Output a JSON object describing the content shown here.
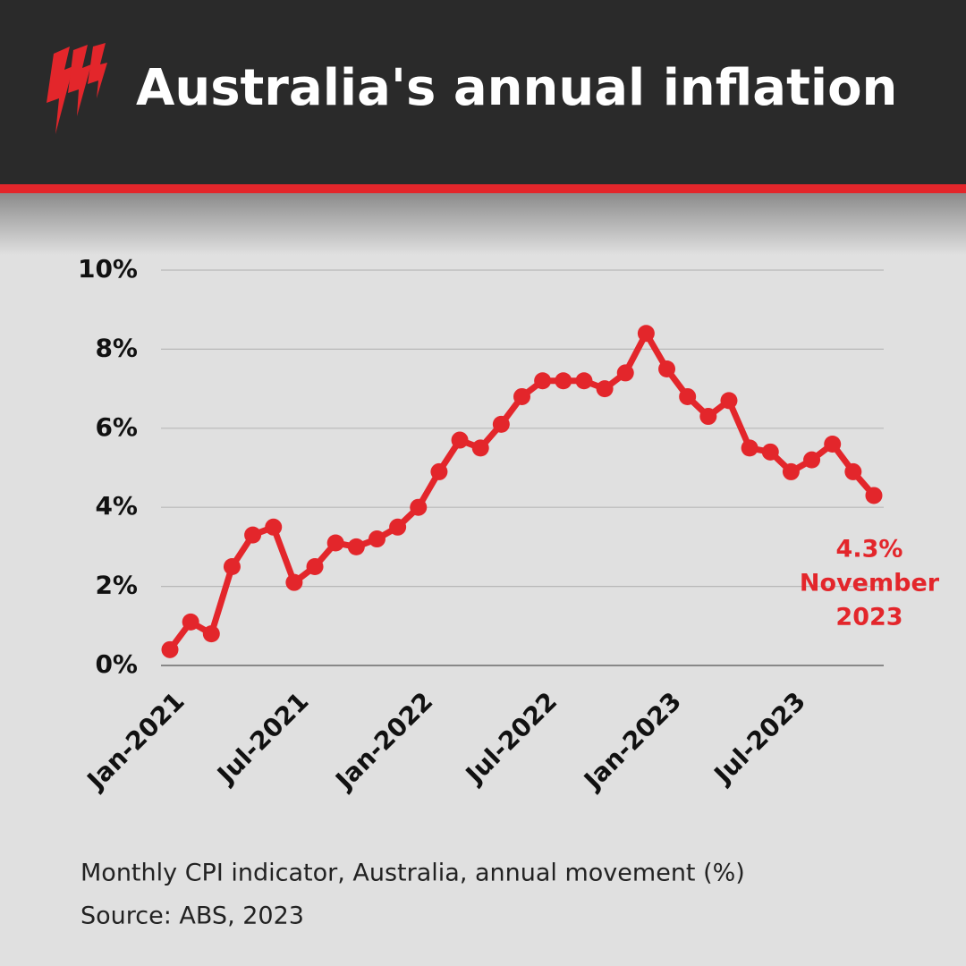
{
  "chart_data": {
    "type": "line",
    "title": "Australia's annual inflation",
    "note": "Monthly CPI indicator, Australia, annual movement (%)",
    "source": "Source: ABS, 2023",
    "categories": [
      "Jan-2021",
      null,
      null,
      null,
      null,
      null,
      "Jul-2021",
      null,
      null,
      null,
      null,
      null,
      "Jan-2022",
      null,
      null,
      null,
      null,
      null,
      "Jul-2022",
      null,
      null,
      null,
      null,
      null,
      "Jan-2023",
      null,
      null,
      null,
      null,
      null,
      "Jul-2023",
      null,
      null,
      null,
      null
    ],
    "series": [
      {
        "name": "Annual movement",
        "color": "#e3262b",
        "values": [
          0.4,
          1.1,
          0.8,
          2.5,
          3.3,
          3.5,
          2.1,
          2.5,
          3.1,
          3.0,
          3.2,
          3.5,
          4.0,
          4.9,
          5.7,
          5.5,
          6.1,
          6.8,
          7.2,
          7.2,
          7.2,
          7.0,
          7.4,
          8.4,
          7.5,
          6.8,
          6.3,
          6.7,
          5.5,
          5.4,
          4.9,
          5.2,
          5.6,
          4.9,
          4.3
        ],
        "value_labels": [
          null,
          null,
          null,
          null,
          null,
          null,
          null,
          null,
          null,
          null,
          null,
          null,
          null,
          null,
          null,
          null,
          null,
          null,
          null,
          null,
          null,
          null,
          null,
          null,
          null,
          null,
          null,
          null,
          null,
          null,
          null,
          null,
          null,
          null,
          "4.3%"
        ]
      }
    ],
    "annotation": [
      "November",
      "2023"
    ],
    "ylim": [
      0,
      10
    ],
    "yticks": [
      {
        "value": 0,
        "label": "0%"
      },
      {
        "value": 2,
        "label": "2%"
      },
      {
        "value": 4,
        "label": "4%"
      },
      {
        "value": 6,
        "label": "6%"
      },
      {
        "value": 8,
        "label": "8%"
      },
      {
        "value": 10,
        "label": "10%"
      }
    ],
    "grid": true
  }
}
